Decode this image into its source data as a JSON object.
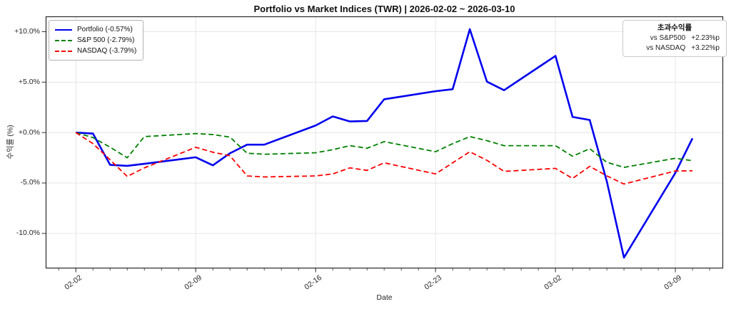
{
  "title": "Portfolio vs Market Indices (TWR) | 2026-02-02 ~ 2026-03-10",
  "axes": {
    "y_label": "수익률 (%)",
    "x_label": "Date",
    "y_ticks": [
      "+10.0%",
      "+5.0%",
      "+0.0%",
      "-5.0%",
      "-10.0%"
    ],
    "x_ticks": [
      "02-02",
      "02-09",
      "02-16",
      "02-23",
      "03-02",
      "03-09"
    ]
  },
  "legend": {
    "items": [
      {
        "label": "Portfolio (-0.57%)",
        "color": "#0000ee",
        "style": "solid"
      },
      {
        "label": "S&P 500 (-2.79%)",
        "color": "#008000",
        "style": "dashed"
      },
      {
        "label": "NASDAQ (-3.79%)",
        "color": "#ff0000",
        "style": "dashed"
      }
    ]
  },
  "info_box": {
    "title": "초과수익률",
    "rows": [
      {
        "label": "vs S&P500",
        "value": "+2.23%p"
      },
      {
        "label": "vs NASDAQ",
        "value": "+3.22%p"
      }
    ]
  },
  "chart_data": {
    "type": "line",
    "title": "Portfolio vs Market Indices (TWR) | 2026-02-02 ~ 2026-03-10",
    "xlabel": "Date",
    "ylabel": "수익률 (%)",
    "x_dates": [
      "02-02",
      "02-03",
      "02-04",
      "02-05",
      "02-06",
      "02-09",
      "02-10",
      "02-11",
      "02-12",
      "02-13",
      "02-16",
      "02-17",
      "02-18",
      "02-19",
      "02-20",
      "02-23",
      "02-24",
      "02-25",
      "02-26",
      "02-27",
      "03-02",
      "03-03",
      "03-04",
      "03-05",
      "03-06",
      "03-09",
      "03-10"
    ],
    "x_day_offsets": [
      0,
      1,
      2,
      3,
      4,
      7,
      8,
      9,
      10,
      11,
      14,
      15,
      16,
      17,
      18,
      21,
      22,
      23,
      24,
      25,
      28,
      29,
      30,
      31,
      32,
      35,
      36
    ],
    "series": [
      {
        "name": "Portfolio",
        "color": "#0000ee",
        "style": "solid",
        "final_return_pct": -0.57,
        "values": [
          0.0,
          -0.1,
          -3.2,
          -3.3,
          -3.1,
          -2.45,
          -3.25,
          -2.05,
          -1.2,
          -1.2,
          0.7,
          1.6,
          1.1,
          1.15,
          3.3,
          4.1,
          4.3,
          10.25,
          5.05,
          4.2,
          7.6,
          1.55,
          1.25,
          -4.85,
          -12.4,
          -4.0,
          -0.57
        ]
      },
      {
        "name": "S&P 500",
        "color": "#008000",
        "style": "dashed",
        "final_return_pct": -2.79,
        "values": [
          0.0,
          -0.5,
          -1.45,
          -2.5,
          -0.4,
          -0.1,
          -0.2,
          -0.45,
          -2.05,
          -2.15,
          -2.0,
          -1.7,
          -1.3,
          -1.55,
          -0.9,
          -1.9,
          -1.1,
          -0.4,
          -0.8,
          -1.3,
          -1.3,
          -2.35,
          -1.6,
          -2.95,
          -3.45,
          -2.55,
          -2.79
        ]
      },
      {
        "name": "NASDAQ",
        "color": "#ff0000",
        "style": "dashed",
        "final_return_pct": -3.79,
        "values": [
          0.0,
          -1.1,
          -2.7,
          -4.35,
          -3.5,
          -1.46,
          -1.95,
          -2.3,
          -4.3,
          -4.4,
          -4.3,
          -4.1,
          -3.5,
          -3.75,
          -3.0,
          -4.1,
          -3.0,
          -1.9,
          -2.75,
          -3.85,
          -3.55,
          -4.55,
          -3.35,
          -4.3,
          -5.1,
          -3.81,
          -3.79
        ]
      }
    ],
    "y_tick_values": [
      10,
      5,
      0,
      -5,
      -10
    ],
    "x_tick_offsets": [
      0,
      7,
      14,
      21,
      28,
      35
    ],
    "ylim": [
      -13.47,
      11.52
    ],
    "xlim_days": [
      -1.76,
      37.79
    ],
    "grid": true,
    "legend_position": "upper left",
    "excess_return": {
      "vs_sp500_pp": 2.23,
      "vs_nasdaq_pp": 3.22
    }
  }
}
